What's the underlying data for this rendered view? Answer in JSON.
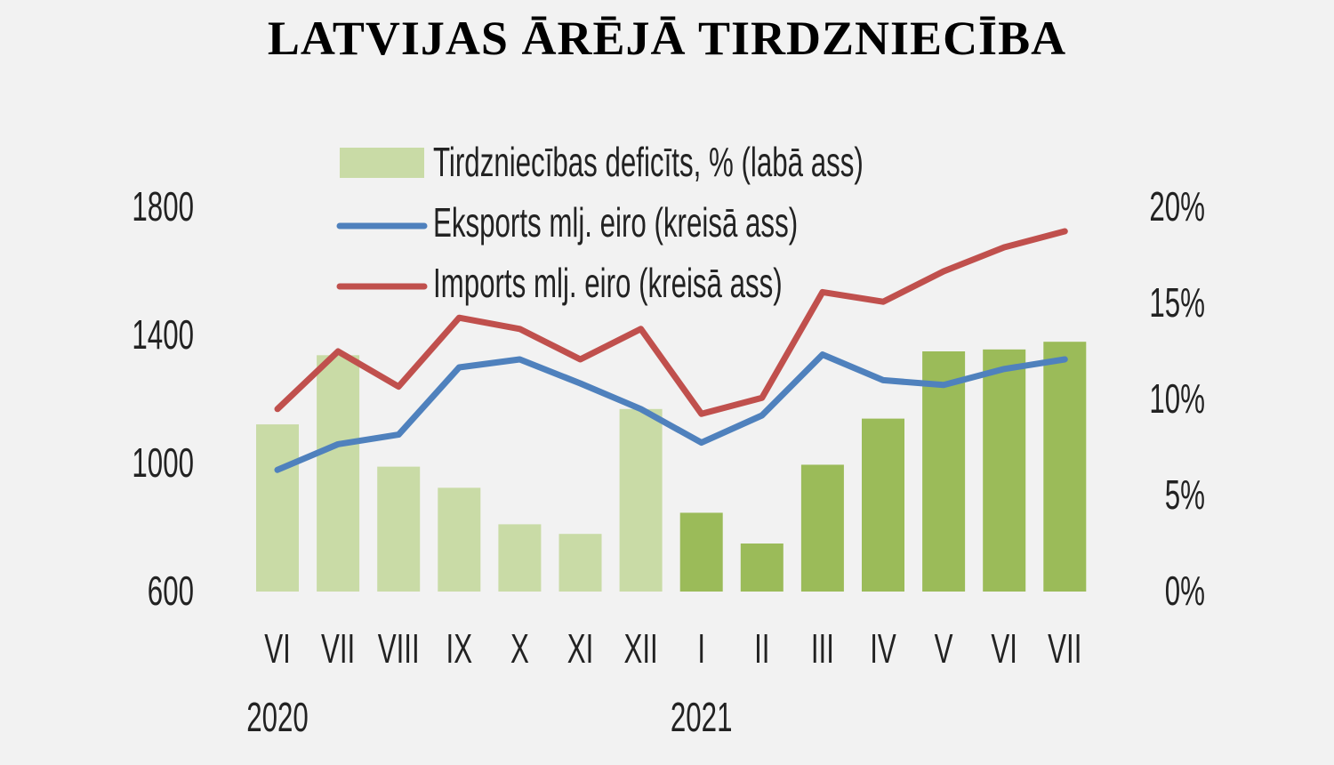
{
  "chart_data": {
    "type": "bar+line",
    "title": "LATVIJAS ĀRĒJĀ TIRDZNIECĪBA",
    "categories": [
      "VI",
      "VII",
      "VIII",
      "IX",
      "X",
      "XI",
      "XII",
      "I",
      "II",
      "III",
      "IV",
      "V",
      "VI",
      "VII"
    ],
    "year_labels": [
      {
        "label": "2020",
        "index": 0
      },
      {
        "label": "2021",
        "index": 7
      }
    ],
    "left_axis": {
      "ticks": [
        "600",
        "1000",
        "1400",
        "1800"
      ],
      "range": [
        600,
        1800
      ]
    },
    "right_axis": {
      "ticks": [
        "0%",
        "5%",
        "10%",
        "15%",
        "20%"
      ],
      "range": [
        0,
        20
      ]
    },
    "series": [
      {
        "name": "Tirdzniecības deficīts, % (labā ass)",
        "type": "bar",
        "axis": "right",
        "values": [
          8.7,
          12.3,
          6.5,
          5.4,
          3.5,
          3.0,
          9.5,
          4.1,
          2.5,
          6.6,
          9.0,
          12.5,
          12.6,
          13.0
        ]
      },
      {
        "name": "Eksports mlj. eiro (kreisā ass)",
        "type": "line",
        "axis": "left",
        "values": [
          980,
          1060,
          1090,
          1300,
          1325,
          1250,
          1170,
          1065,
          1150,
          1340,
          1260,
          1245,
          1295,
          1325
        ]
      },
      {
        "name": "Imports mlj. eiro (kreisā ass)",
        "type": "line",
        "axis": "left",
        "values": [
          1170,
          1350,
          1240,
          1455,
          1420,
          1325,
          1420,
          1155,
          1205,
          1535,
          1505,
          1600,
          1675,
          1725
        ]
      }
    ],
    "colors": {
      "bar_2020": "#c9dba6",
      "bar_2021": "#9bbb59",
      "export": "#4f81bd",
      "import": "#c0504d"
    },
    "grid": false,
    "legend": "top-left inside"
  }
}
